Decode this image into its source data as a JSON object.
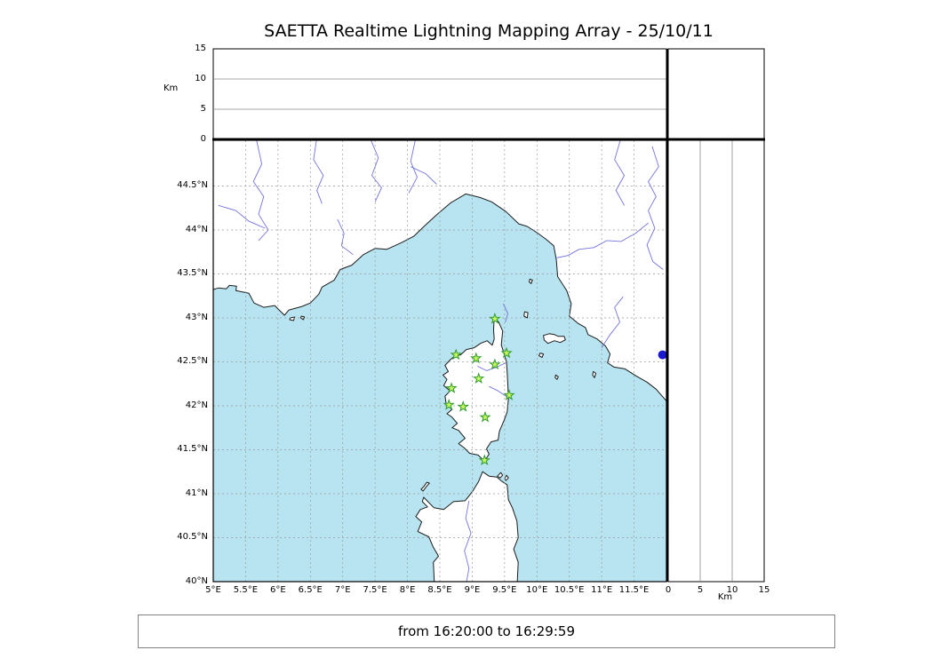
{
  "title": "SAETTA Realtime Lightning Mapping Array - 25/10/11",
  "footer": {
    "time_range": "from 16:20:00 to 16:29:59"
  },
  "chart_data": {
    "type": "scatter",
    "title": "SAETTA Realtime Lightning Mapping Array - 25/10/11",
    "date": "25/10/11",
    "time_window": {
      "from": "16:20:00",
      "to": "16:29:59"
    },
    "map_panel": {
      "xlim": [
        5,
        12
      ],
      "ylim": [
        40,
        45.02
      ],
      "grid": true,
      "grid_step_deg": 0.5,
      "lon_ticks": [
        5,
        5.5,
        6,
        6.5,
        7,
        7.5,
        8,
        8.5,
        9,
        9.5,
        10,
        10.5,
        11,
        11.5
      ],
      "lon_tick_labels": [
        "5°E",
        "5.5°E",
        "6°E",
        "6.5°E",
        "7°E",
        "7.5°E",
        "8°E",
        "8.5°E",
        "9°E",
        "9.5°E",
        "10°E",
        "10.5°E",
        "11°E",
        "11.5°E"
      ],
      "lat_ticks": [
        44.5,
        44,
        43.5,
        43,
        42.5,
        42,
        41.5,
        41,
        40.5,
        40
      ],
      "lat_tick_labels": [
        "44.5°N",
        "44°N",
        "43.5°N",
        "43°N",
        "42.5°N",
        "42°N",
        "41.5°N",
        "41°N",
        "40.5°N",
        "40°N"
      ],
      "sea_color": "#b7e4f0",
      "land_color": "#ffffff",
      "coast_color": "#1c1c1c",
      "river_color": "#7373d9",
      "lake": {
        "name": "lake",
        "lon": 11.94,
        "lat": 42.58,
        "color": "#1a1ad2"
      }
    },
    "altitude_top_panel": {
      "unit": "Km",
      "lim": [
        0,
        15
      ],
      "ticks": [
        0,
        5,
        10,
        15
      ],
      "tick_labels": [
        "0",
        "5",
        "10",
        "15"
      ],
      "gridlines": [
        5,
        10
      ],
      "points": []
    },
    "altitude_right_panel": {
      "unit": "Km",
      "lim": [
        0,
        15
      ],
      "ticks": [
        0,
        5,
        10,
        15
      ],
      "tick_labels": [
        "0",
        "5",
        "10",
        "15"
      ],
      "gridlines": [
        5,
        10
      ],
      "points": []
    },
    "stations": {
      "marker": "star",
      "color": "#c8f75d",
      "edge_color": "#2e9b2e",
      "points": [
        {
          "lon": 9.35,
          "lat": 42.99
        },
        {
          "lon": 8.75,
          "lat": 42.58
        },
        {
          "lon": 9.06,
          "lat": 42.54
        },
        {
          "lon": 9.35,
          "lat": 42.47
        },
        {
          "lon": 9.53,
          "lat": 42.6
        },
        {
          "lon": 9.1,
          "lat": 42.31
        },
        {
          "lon": 8.68,
          "lat": 42.2
        },
        {
          "lon": 9.57,
          "lat": 42.12
        },
        {
          "lon": 8.64,
          "lat": 42.01
        },
        {
          "lon": 8.86,
          "lat": 41.99
        },
        {
          "lon": 9.2,
          "lat": 41.87
        },
        {
          "lon": 9.19,
          "lat": 41.38
        }
      ]
    },
    "lightning_sources": []
  }
}
